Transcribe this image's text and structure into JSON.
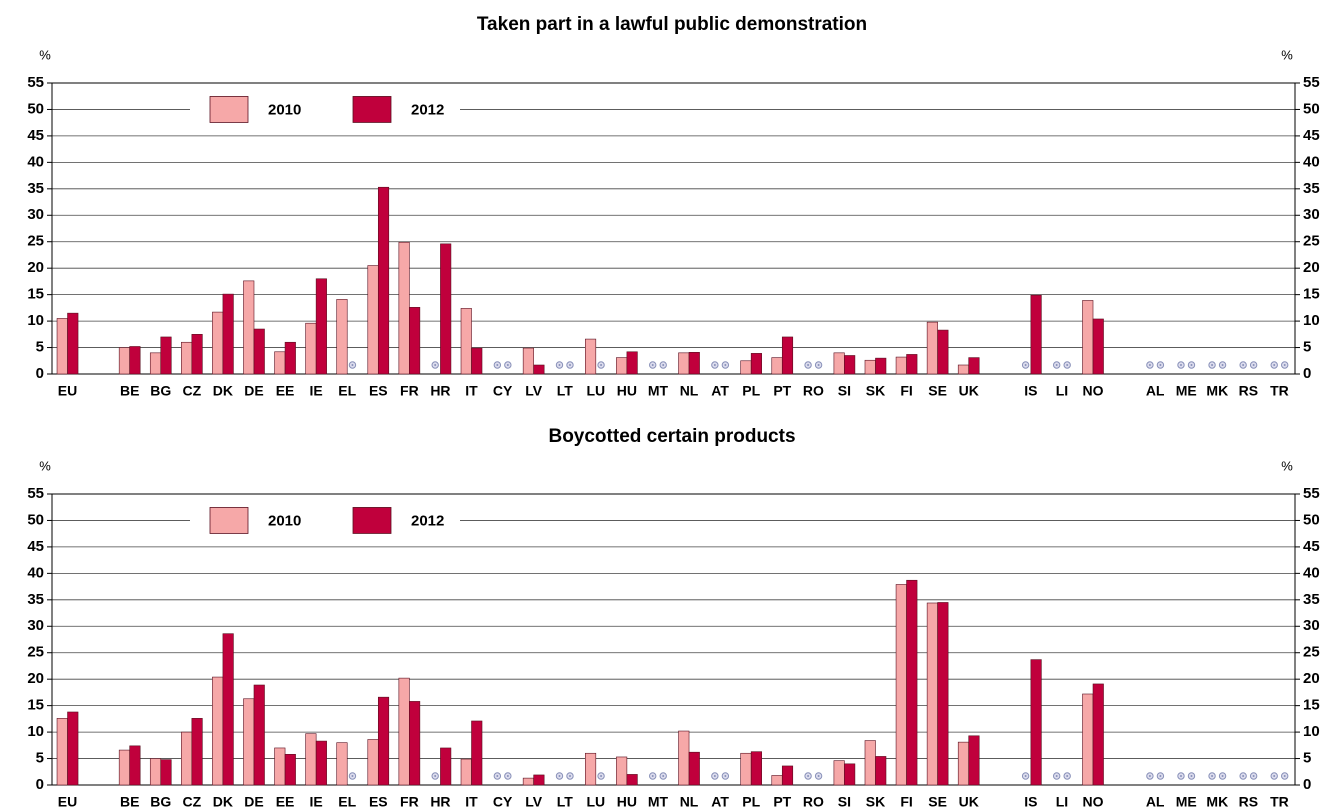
{
  "chart_data": [
    {
      "type": "bar",
      "title": "Taken part in a lawful public demonstration",
      "ylabel": "%",
      "categories": [
        "EU",
        null,
        "BE",
        "BG",
        "CZ",
        "DK",
        "DE",
        "EE",
        "IE",
        "EL",
        "ES",
        "FR",
        "HR",
        "IT",
        "CY",
        "LV",
        "LT",
        "LU",
        "HU",
        "MT",
        "NL",
        "AT",
        "PL",
        "PT",
        "RO",
        "SI",
        "SK",
        "FI",
        "SE",
        "UK",
        null,
        "IS",
        "LI",
        "NO",
        null,
        "AL",
        "ME",
        "MK",
        "RS",
        "TR"
      ],
      "series": [
        {
          "name": "2010",
          "color": "#f6a8a8",
          "values": [
            10.5,
            null,
            5,
            4,
            6,
            11.7,
            17.6,
            4.2,
            9.6,
            14.1,
            20.5,
            24.9,
            null,
            12.4,
            null,
            4.9,
            null,
            6.6,
            3.1,
            null,
            4,
            null,
            2.5,
            3.1,
            null,
            4,
            2.6,
            3.2,
            9.8,
            1.7,
            null,
            null,
            null,
            13.9,
            null,
            null,
            null,
            null,
            null,
            null
          ]
        },
        {
          "name": "2012",
          "color": "#c0003c",
          "values": [
            11.5,
            null,
            5.2,
            7,
            7.5,
            15.1,
            8.5,
            6,
            18,
            null,
            35.3,
            12.6,
            24.6,
            4.9,
            null,
            1.7,
            null,
            null,
            4.2,
            null,
            4.1,
            null,
            3.9,
            7,
            null,
            3.5,
            3,
            3.7,
            8.3,
            3.1,
            null,
            14.9,
            null,
            10.4,
            null,
            null,
            null,
            null,
            null,
            null
          ]
        }
      ],
      "ylim": [
        0,
        55
      ],
      "yticks": [
        0,
        5,
        10,
        15,
        20,
        25,
        30,
        35,
        40,
        45,
        50,
        55
      ],
      "grid": true
    },
    {
      "type": "bar",
      "title": "Boycotted certain products",
      "ylabel": "%",
      "categories": [
        "EU",
        null,
        "BE",
        "BG",
        "CZ",
        "DK",
        "DE",
        "EE",
        "IE",
        "EL",
        "ES",
        "FR",
        "HR",
        "IT",
        "CY",
        "LV",
        "LT",
        "LU",
        "HU",
        "MT",
        "NL",
        "AT",
        "PL",
        "PT",
        "RO",
        "SI",
        "SK",
        "FI",
        "SE",
        "UK",
        null,
        "IS",
        "LI",
        "NO",
        null,
        "AL",
        "ME",
        "MK",
        "RS",
        "TR"
      ],
      "series": [
        {
          "name": "2010",
          "color": "#f6a8a8",
          "values": [
            12.6,
            null,
            6.6,
            5,
            10,
            20.4,
            16.3,
            7,
            9.7,
            8,
            8.6,
            20.2,
            null,
            4.9,
            null,
            1.3,
            null,
            6,
            5.3,
            null,
            10.2,
            null,
            6,
            1.8,
            null,
            4.6,
            8.4,
            37.9,
            34.4,
            8.1,
            null,
            null,
            null,
            17.2,
            null,
            null,
            null,
            null,
            null,
            null
          ]
        },
        {
          "name": "2012",
          "color": "#c0003c",
          "values": [
            13.8,
            null,
            7.4,
            4.8,
            12.6,
            28.6,
            18.9,
            5.8,
            8.3,
            null,
            16.6,
            15.8,
            7,
            12.1,
            null,
            1.9,
            null,
            null,
            2,
            null,
            6.2,
            null,
            6.3,
            3.6,
            null,
            4,
            5.4,
            38.7,
            34.5,
            9.3,
            null,
            23.7,
            null,
            19.1,
            null,
            null,
            null,
            null,
            null,
            null
          ]
        }
      ],
      "ylim": [
        0,
        55
      ],
      "yticks": [
        0,
        5,
        10,
        15,
        20,
        25,
        30,
        35,
        40,
        45,
        50,
        55
      ],
      "grid": true
    }
  ]
}
